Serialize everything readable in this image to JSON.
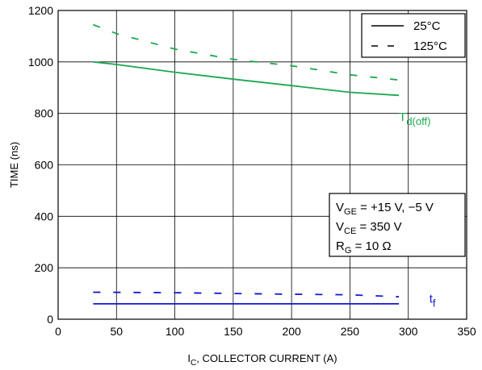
{
  "chart_data": {
    "type": "line",
    "xlabel_main": "I",
    "xlabel_sub": "C",
    "xlabel_rest": ", COLLECTOR CURRENT (A)",
    "ylabel": "TIME (ns)",
    "xlim": [
      0,
      350
    ],
    "ylim": [
      0,
      1200
    ],
    "xticks": [
      0,
      50,
      100,
      150,
      200,
      250,
      300,
      350
    ],
    "yticks": [
      0,
      200,
      400,
      600,
      800,
      1000,
      1200
    ],
    "grid": true,
    "legend": {
      "placement": "top-right",
      "entries": [
        {
          "label": "25°C",
          "style": "solid"
        },
        {
          "label": "125°C",
          "style": "dashed"
        }
      ]
    },
    "conditions": [
      {
        "main": "V",
        "sub": "GE",
        "rest": " = +15 V, −5 V"
      },
      {
        "main": "V",
        "sub": "CE",
        "rest": " = 350 V"
      },
      {
        "main": "R",
        "sub": "G",
        "rest": " = 10 Ω"
      }
    ],
    "curve_labels": [
      {
        "main": "T",
        "sub": "d(off)",
        "color": "#1aa84f",
        "x": 292,
        "y": 770
      },
      {
        "main": "t",
        "sub": "f",
        "color": "#1515d6",
        "x": 318,
        "y": 65
      }
    ],
    "series": [
      {
        "curve": "Td(off)",
        "temp": "25°C",
        "style": "solid",
        "color": "#1aa84f",
        "x": [
          30,
          50,
          100,
          150,
          200,
          250,
          292
        ],
        "y": [
          1000,
          990,
          960,
          933,
          908,
          882,
          870
        ]
      },
      {
        "curve": "Td(off)",
        "temp": "125°C",
        "style": "dashed",
        "color": "#1aa84f",
        "x": [
          30,
          50,
          100,
          150,
          200,
          250,
          292
        ],
        "y": [
          1145,
          1110,
          1050,
          1010,
          985,
          950,
          930
        ]
      },
      {
        "curve": "tf",
        "temp": "25°C",
        "style": "solid",
        "color": "#1515d6",
        "x": [
          30,
          100,
          200,
          292
        ],
        "y": [
          60,
          60,
          60,
          60
        ]
      },
      {
        "curve": "tf",
        "temp": "125°C",
        "style": "dashed",
        "color": "#1515d6",
        "x": [
          30,
          100,
          150,
          200,
          250,
          292
        ],
        "y": [
          105,
          103,
          100,
          97,
          95,
          87
        ]
      }
    ]
  }
}
